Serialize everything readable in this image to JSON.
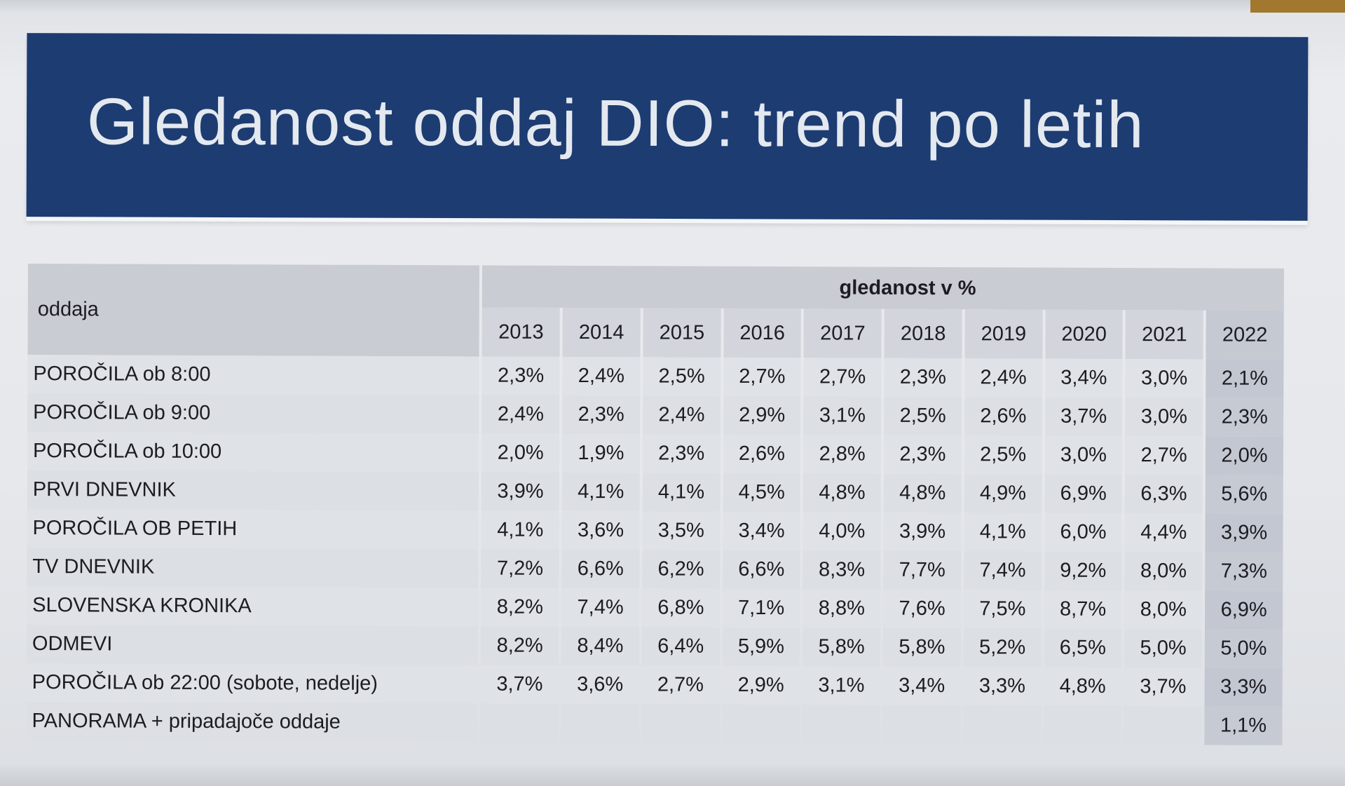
{
  "slide": {
    "title": "Gledanost oddaj DIO: trend po letih"
  },
  "table": {
    "name_header": "oddaja",
    "group_header": "gledanost v %",
    "years": [
      "2013",
      "2014",
      "2015",
      "2016",
      "2017",
      "2018",
      "2019",
      "2020",
      "2021",
      "2022"
    ],
    "rows": [
      {
        "name": "POROČILA ob 8:00",
        "values": [
          "2,3%",
          "2,4%",
          "2,5%",
          "2,7%",
          "2,7%",
          "2,3%",
          "2,4%",
          "3,4%",
          "3,0%",
          "2,1%"
        ]
      },
      {
        "name": "POROČILA ob 9:00",
        "values": [
          "2,4%",
          "2,3%",
          "2,4%",
          "2,9%",
          "3,1%",
          "2,5%",
          "2,6%",
          "3,7%",
          "3,0%",
          "2,3%"
        ]
      },
      {
        "name": "POROČILA ob 10:00",
        "values": [
          "2,0%",
          "1,9%",
          "2,3%",
          "2,6%",
          "2,8%",
          "2,3%",
          "2,5%",
          "3,0%",
          "2,7%",
          "2,0%"
        ]
      },
      {
        "name": "PRVI DNEVNIK",
        "values": [
          "3,9%",
          "4,1%",
          "4,1%",
          "4,5%",
          "4,8%",
          "4,8%",
          "4,9%",
          "6,9%",
          "6,3%",
          "5,6%"
        ]
      },
      {
        "name": "POROČILA OB PETIH",
        "values": [
          "4,1%",
          "3,6%",
          "3,5%",
          "3,4%",
          "4,0%",
          "3,9%",
          "4,1%",
          "6,0%",
          "4,4%",
          "3,9%"
        ]
      },
      {
        "name": "TV DNEVNIK",
        "values": [
          "7,2%",
          "6,6%",
          "6,2%",
          "6,6%",
          "8,3%",
          "7,7%",
          "7,4%",
          "9,2%",
          "8,0%",
          "7,3%"
        ]
      },
      {
        "name": "SLOVENSKA KRONIKA",
        "values": [
          "8,2%",
          "7,4%",
          "6,8%",
          "7,1%",
          "8,8%",
          "7,6%",
          "7,5%",
          "8,7%",
          "8,0%",
          "6,9%"
        ]
      },
      {
        "name": "ODMEVI",
        "values": [
          "8,2%",
          "8,4%",
          "6,4%",
          "5,9%",
          "5,8%",
          "5,8%",
          "5,2%",
          "6,5%",
          "5,0%",
          "5,0%"
        ]
      },
      {
        "name": "POROČILA ob 22:00 (sobote, nedelje)",
        "values": [
          "3,7%",
          "3,6%",
          "2,7%",
          "2,9%",
          "3,1%",
          "3,4%",
          "3,3%",
          "4,8%",
          "3,7%",
          "3,3%"
        ]
      },
      {
        "name": "PANORAMA + pripadajoče oddaje",
        "values": [
          "",
          "",
          "",
          "",
          "",
          "",
          "",
          "",
          "",
          "1,1%"
        ]
      }
    ]
  },
  "colors": {
    "banner": "#1d3c72",
    "banner_text": "#e4e9f0",
    "table_header": "#c9ccd2",
    "table_row": "#dcdfe4",
    "highlight_column": "#c6cad3"
  }
}
